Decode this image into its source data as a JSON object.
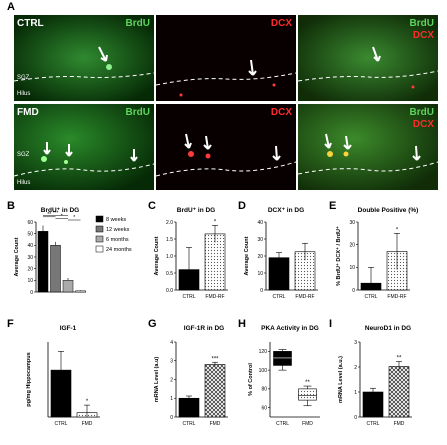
{
  "panelA": {
    "letter": "A",
    "rows": [
      {
        "label": "CTRL",
        "sgz": "SGZ",
        "hilus": "Hilus"
      },
      {
        "label": "FMD",
        "sgz": "SGZ",
        "hilus": "Hilus"
      }
    ],
    "channels": [
      "BrdU",
      "DCX",
      "BrdU",
      "DCX"
    ],
    "colors": {
      "green": "#5fd35f",
      "red": "#ff2a2a"
    }
  },
  "panels": [
    {
      "letter": "B",
      "title": "BrdU⁺ in DG",
      "ylabel": "Average Count",
      "type": "bar",
      "categories": [
        "8 weeks",
        "12 weeks",
        "6 months",
        "24 months"
      ],
      "values": [
        52,
        40,
        10,
        1
      ],
      "errors": [
        5,
        3,
        2,
        0.5
      ],
      "ylim": [
        0,
        60
      ],
      "yticks": [
        "0",
        "10",
        "20",
        "30",
        "40",
        "50",
        "60"
      ],
      "legend": [
        "8 weeks",
        "12 weeks",
        "6 months",
        "24 months"
      ],
      "sig": [
        "**",
        "***",
        "*",
        "*"
      ]
    },
    {
      "letter": "C",
      "title": "BrdU⁺ in DG",
      "ylabel": "Average Count",
      "type": "bar",
      "categories": [
        "CTRL",
        "FMD-RF"
      ],
      "values": [
        0.6,
        1.65
      ],
      "errors": [
        0.65,
        0.25
      ],
      "ylim": [
        0,
        2
      ],
      "yticks": [
        "0.0",
        "0.5",
        "1.0",
        "1.5",
        "2.0"
      ],
      "sig": [
        "",
        "*"
      ]
    },
    {
      "letter": "D",
      "title": "DCX⁺ in DG",
      "ylabel": "Average Count",
      "type": "bar",
      "categories": [
        "CTRL",
        "FMD-RF"
      ],
      "values": [
        19,
        22.5
      ],
      "errors": [
        3,
        5
      ],
      "ylim": [
        0,
        40
      ],
      "yticks": [
        "0",
        "10",
        "20",
        "30",
        "40"
      ],
      "sig": [
        "",
        ""
      ]
    },
    {
      "letter": "E",
      "title": "Double Positive (%)",
      "ylabel": "% BrdU⁺ DCX⁺ / BrdU⁺",
      "type": "bar",
      "categories": [
        "CTRL",
        "FMD-RF"
      ],
      "values": [
        3,
        17
      ],
      "errors": [
        7,
        8
      ],
      "ylim": [
        0,
        30
      ],
      "yticks": [
        "0",
        "10",
        "20",
        "30"
      ],
      "sig": [
        "",
        "*"
      ]
    },
    {
      "letter": "F",
      "title": "IGF-1",
      "ylabel": "pg/mg Hippocampus",
      "type": "bar",
      "categories": [
        "CTRL",
        "FMD"
      ],
      "values": [
        7.5,
        0.7
      ],
      "errors": [
        3,
        1.2
      ],
      "ylim": [
        0,
        12
      ],
      "yticks": [],
      "sig": [
        "",
        "*"
      ]
    },
    {
      "letter": "G",
      "title": "IGF-1R in DG",
      "ylabel": "mRNA Level (a.u)",
      "type": "bar",
      "categories": [
        "CTRL",
        "FMD"
      ],
      "values": [
        1.0,
        2.8
      ],
      "errors": [
        0.12,
        0.12
      ],
      "ylim": [
        0,
        4
      ],
      "yticks": [
        "0",
        "1",
        "2",
        "3",
        "4"
      ],
      "sig": [
        "",
        "***"
      ]
    },
    {
      "letter": "H",
      "title": "PKA Activity in DG",
      "ylabel": "% of Control",
      "type": "box",
      "categories": [
        "CTRL",
        "FMD"
      ],
      "boxes": [
        [
          100,
          105,
          113,
          120,
          122
        ],
        [
          62,
          68,
          73,
          80,
          83
        ]
      ],
      "ylim": [
        50,
        130
      ],
      "yticks": [
        "60",
        "80",
        "100",
        "120"
      ],
      "sig": [
        "",
        "**"
      ]
    },
    {
      "letter": "I",
      "title": "NeuroD1 in DG",
      "ylabel": "mRNA Level (a.u.)",
      "type": "bar",
      "categories": [
        "CTRL",
        "FMD"
      ],
      "values": [
        1.0,
        2.02
      ],
      "errors": [
        0.15,
        0.2
      ],
      "ylim": [
        0,
        3
      ],
      "yticks": [
        "0",
        "1",
        "2",
        "3"
      ],
      "sig": [
        "",
        "**"
      ]
    }
  ]
}
